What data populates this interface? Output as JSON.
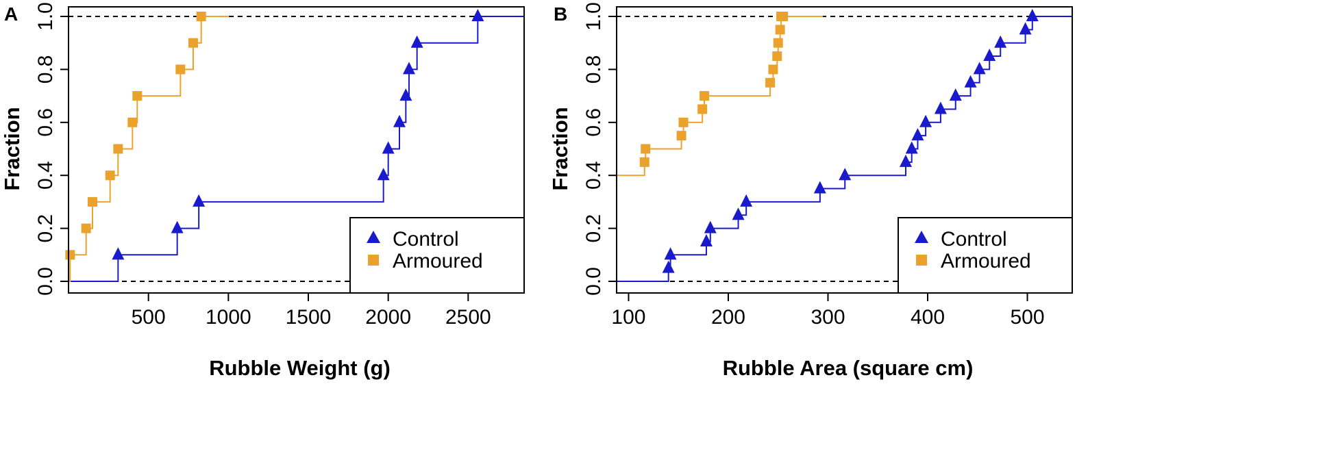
{
  "colors": {
    "control": "#1a1acd",
    "armoured": "#eba22c",
    "axis": "#000000",
    "reference_line": "#000000"
  },
  "chart_data": [
    {
      "type": "step",
      "panel": "A",
      "title": "",
      "xlabel": "Rubble Weight (g)",
      "ylabel": "Fraction",
      "xlim": [
        0,
        2850
      ],
      "ylim": [
        0,
        1
      ],
      "x_ticks": [
        500,
        1000,
        1500,
        2000,
        2500
      ],
      "x_tick_labels": [
        "500",
        "1000",
        "1500",
        "2000",
        "2500"
      ],
      "y_ticks": [
        0,
        0.2,
        0.4,
        0.6,
        0.8,
        1
      ],
      "y_tick_labels": [
        "0.0",
        "0.2",
        "0.4",
        "0.6",
        "0.8",
        "1.0"
      ],
      "reference_lines": [
        0,
        1
      ],
      "legend": {
        "position": "bottom-right",
        "entries": [
          "Control",
          "Armoured"
        ]
      },
      "series": [
        {
          "name": "Control",
          "marker": "triangle",
          "color_key": "control",
          "x": [
            310,
            680,
            815,
            1970,
            2000,
            2070,
            2110,
            2130,
            2180,
            2560
          ],
          "y": [
            0.1,
            0.2,
            0.3,
            0.4,
            0.5,
            0.6,
            0.7,
            0.8,
            0.9,
            1.0
          ],
          "step_end": 2850
        },
        {
          "name": "Armoured",
          "marker": "square",
          "color_key": "armoured",
          "x": [
            10,
            110,
            150,
            260,
            310,
            400,
            430,
            700,
            780,
            830
          ],
          "y": [
            0.1,
            0.2,
            0.3,
            0.4,
            0.5,
            0.6,
            0.7,
            0.8,
            0.9,
            1.0
          ],
          "step_end": 1000
        }
      ]
    },
    {
      "type": "step",
      "panel": "B",
      "title": "",
      "xlabel": "Rubble Area (square cm)",
      "ylabel": "Fraction",
      "xlim": [
        88,
        545
      ],
      "ylim": [
        0,
        1
      ],
      "x_ticks": [
        100,
        200,
        300,
        400,
        500
      ],
      "x_tick_labels": [
        "100",
        "200",
        "300",
        "400",
        "500"
      ],
      "y_ticks": [
        0,
        0.2,
        0.4,
        0.6,
        0.8,
        1
      ],
      "y_tick_labels": [
        "0.0",
        "0.2",
        "0.4",
        "0.6",
        "0.8",
        "1.0"
      ],
      "reference_lines": [
        0,
        1
      ],
      "legend": {
        "position": "bottom-right",
        "entries": [
          "Control",
          "Armoured"
        ]
      },
      "series": [
        {
          "name": "Control",
          "marker": "triangle",
          "color_key": "control",
          "x": [
            140,
            142,
            178,
            182,
            210,
            218,
            292,
            317,
            378,
            384,
            390,
            398,
            413,
            428,
            443,
            452,
            462,
            473,
            498,
            505
          ],
          "y": [
            0.05,
            0.1,
            0.15,
            0.2,
            0.25,
            0.3,
            0.35,
            0.4,
            0.45,
            0.5,
            0.55,
            0.6,
            0.65,
            0.7,
            0.75,
            0.8,
            0.85,
            0.9,
            0.95,
            1.0
          ],
          "step_end": 545
        },
        {
          "name": "Armoured",
          "marker": "square",
          "color_key": "armoured",
          "x": [
            116,
            117,
            153,
            155,
            174,
            176,
            242,
            245,
            249,
            250,
            252,
            253,
            255
          ],
          "y": [
            0.45,
            0.5,
            0.55,
            0.6,
            0.65,
            0.7,
            0.75,
            0.8,
            0.85,
            0.9,
            0.95,
            1.0,
            1.0
          ],
          "step_start_value": 0.4,
          "step_end": 295
        }
      ]
    }
  ]
}
